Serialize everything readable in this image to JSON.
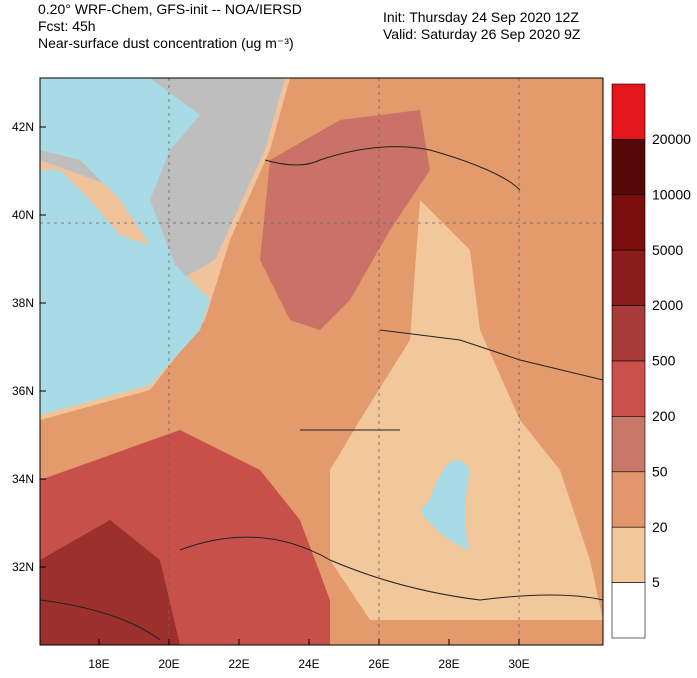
{
  "header": {
    "left": [
      "0.20° WRF-Chem, GFS-init -- NOA/IERSD",
      "Fcst: 45h",
      "Near-surface dust concentration (ug m⁻³)"
    ],
    "right": [
      "Init: Thursday 24 Sep 2020  12Z",
      "Valid: Saturday 26 Sep 2020  9Z"
    ]
  },
  "axes": {
    "lat_labels": [
      "42N",
      "40N",
      "38N",
      "36N",
      "34N",
      "32N"
    ],
    "lon_labels": [
      "18E",
      "20E",
      "22E",
      "24E",
      "26E",
      "28E",
      "30E"
    ]
  },
  "colorbar": {
    "labels": [
      "20000",
      "10000",
      "5000",
      "2000",
      "500",
      "200",
      "50",
      "20",
      "5"
    ],
    "colors": [
      "#e3171a",
      "#560808",
      "#7a0c0c",
      "#8c1c1c",
      "#a83b38",
      "#cb4f4b",
      "#c97769",
      "#e3966b",
      "#f3c79c",
      "#ffffff"
    ]
  }
}
